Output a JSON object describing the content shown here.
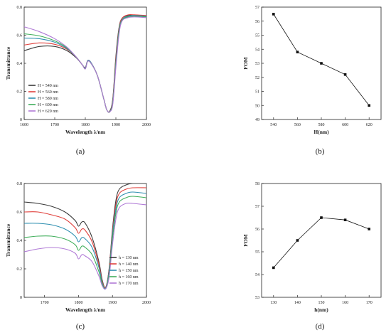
{
  "chart_data": [
    {
      "panel": "(a)",
      "type": "line",
      "xlabel": "Wavelength λ/nm",
      "ylabel": "Transmittance",
      "xlim": [
        1600,
        2000
      ],
      "ylim": [
        0,
        0.8
      ],
      "xticks": [
        "1600",
        "1700",
        "1800",
        "1900",
        "2000"
      ],
      "yticks": [
        "0",
        "0.2",
        "0.4",
        "0.6",
        "0.8"
      ],
      "legend_position": "bottom-left",
      "series": [
        {
          "name": "H = 540  nm",
          "color": "#3a3a3a",
          "x": [
            1600,
            1650,
            1700,
            1740,
            1770,
            1790,
            1800,
            1808,
            1820,
            1840,
            1860,
            1870,
            1880,
            1890,
            1900,
            1910,
            1920,
            1940,
            1960,
            2000
          ],
          "y": [
            0.49,
            0.52,
            0.52,
            0.49,
            0.44,
            0.39,
            0.37,
            0.42,
            0.4,
            0.31,
            0.15,
            0.07,
            0.06,
            0.15,
            0.45,
            0.65,
            0.72,
            0.74,
            0.74,
            0.735
          ]
        },
        {
          "name": "H = 560  nm",
          "color": "#e0403c",
          "x": [
            1600,
            1650,
            1700,
            1740,
            1770,
            1790,
            1800,
            1808,
            1820,
            1840,
            1860,
            1870,
            1880,
            1890,
            1900,
            1910,
            1920,
            1940,
            1960,
            2000
          ],
          "y": [
            0.53,
            0.545,
            0.535,
            0.5,
            0.445,
            0.39,
            0.365,
            0.42,
            0.4,
            0.31,
            0.15,
            0.07,
            0.055,
            0.14,
            0.43,
            0.64,
            0.72,
            0.745,
            0.745,
            0.74
          ]
        },
        {
          "name": "H = 580  nm",
          "color": "#2e8fb0",
          "x": [
            1600,
            1650,
            1700,
            1740,
            1770,
            1790,
            1800,
            1808,
            1820,
            1840,
            1860,
            1870,
            1880,
            1890,
            1900,
            1910,
            1920,
            1940,
            1960,
            2000
          ],
          "y": [
            0.58,
            0.575,
            0.55,
            0.505,
            0.445,
            0.39,
            0.365,
            0.42,
            0.4,
            0.31,
            0.15,
            0.07,
            0.055,
            0.13,
            0.41,
            0.63,
            0.71,
            0.735,
            0.74,
            0.735
          ]
        },
        {
          "name": "H = 600  nm",
          "color": "#3fae5a",
          "x": [
            1600,
            1650,
            1700,
            1740,
            1770,
            1790,
            1800,
            1808,
            1820,
            1840,
            1860,
            1870,
            1880,
            1890,
            1900,
            1910,
            1920,
            1940,
            1960,
            2000
          ],
          "y": [
            0.61,
            0.595,
            0.56,
            0.51,
            0.445,
            0.39,
            0.36,
            0.415,
            0.395,
            0.31,
            0.15,
            0.07,
            0.055,
            0.12,
            0.39,
            0.62,
            0.705,
            0.73,
            0.735,
            0.73
          ]
        },
        {
          "name": "H = 620  nm",
          "color": "#b07ad6",
          "x": [
            1600,
            1650,
            1700,
            1740,
            1770,
            1790,
            1800,
            1808,
            1820,
            1840,
            1860,
            1870,
            1880,
            1890,
            1900,
            1910,
            1920,
            1940,
            1960,
            2000
          ],
          "y": [
            0.66,
            0.625,
            0.575,
            0.515,
            0.445,
            0.39,
            0.36,
            0.415,
            0.395,
            0.31,
            0.15,
            0.07,
            0.055,
            0.11,
            0.37,
            0.6,
            0.7,
            0.725,
            0.73,
            0.725
          ]
        }
      ]
    },
    {
      "panel": "(b)",
      "type": "line",
      "xlabel": "H(nm)",
      "ylabel": "FOM",
      "ylim": [
        49,
        57
      ],
      "categories": [
        "540",
        "560",
        "580",
        "600",
        "620"
      ],
      "yticks": [
        "49",
        "50",
        "51",
        "52",
        "53",
        "54",
        "55",
        "56",
        "57"
      ],
      "series": [
        {
          "name": "",
          "color": "#111111",
          "values": [
            56.5,
            53.8,
            53.0,
            52.2,
            50.0
          ]
        }
      ]
    },
    {
      "panel": "(c)",
      "type": "line",
      "xlabel": "Wavelength λ/nm",
      "ylabel": "Transmittance",
      "xlim": [
        1640,
        2000
      ],
      "ylim": [
        0,
        0.8
      ],
      "xticks": [
        "1700",
        "1800",
        "1900",
        "2000"
      ],
      "yticks": [
        "0",
        "0.2",
        "0.4",
        "0.6",
        "0.8"
      ],
      "legend_position": "bottom-right",
      "series": [
        {
          "name": "h = 130  nm",
          "color": "#3a3a3a",
          "x": [
            1640,
            1680,
            1720,
            1760,
            1790,
            1800,
            1810,
            1820,
            1840,
            1860,
            1870,
            1880,
            1890,
            1900,
            1910,
            1920,
            1940,
            1960,
            2000
          ],
          "y": [
            0.67,
            0.66,
            0.64,
            0.6,
            0.54,
            0.5,
            0.53,
            0.52,
            0.42,
            0.25,
            0.12,
            0.07,
            0.2,
            0.48,
            0.68,
            0.76,
            0.79,
            0.8,
            0.8
          ]
        },
        {
          "name": "h = 140  nm",
          "color": "#e0403c",
          "x": [
            1640,
            1680,
            1720,
            1760,
            1790,
            1800,
            1810,
            1820,
            1840,
            1860,
            1870,
            1880,
            1890,
            1900,
            1910,
            1920,
            1940,
            1960,
            2000
          ],
          "y": [
            0.6,
            0.6,
            0.58,
            0.55,
            0.49,
            0.45,
            0.48,
            0.47,
            0.39,
            0.23,
            0.11,
            0.07,
            0.19,
            0.46,
            0.65,
            0.73,
            0.76,
            0.77,
            0.77
          ]
        },
        {
          "name": "h = 150  nm",
          "color": "#2e8fb0",
          "x": [
            1640,
            1680,
            1720,
            1760,
            1790,
            1800,
            1810,
            1820,
            1840,
            1860,
            1870,
            1880,
            1890,
            1900,
            1910,
            1920,
            1940,
            1960,
            2000
          ],
          "y": [
            0.52,
            0.52,
            0.51,
            0.48,
            0.43,
            0.39,
            0.42,
            0.41,
            0.35,
            0.21,
            0.1,
            0.065,
            0.18,
            0.44,
            0.62,
            0.7,
            0.73,
            0.74,
            0.73
          ]
        },
        {
          "name": "h = 160  nm",
          "color": "#3fae5a",
          "x": [
            1640,
            1680,
            1720,
            1760,
            1790,
            1800,
            1810,
            1820,
            1840,
            1860,
            1870,
            1880,
            1890,
            1900,
            1910,
            1920,
            1940,
            1960,
            2000
          ],
          "y": [
            0.42,
            0.43,
            0.43,
            0.41,
            0.37,
            0.33,
            0.36,
            0.35,
            0.3,
            0.18,
            0.09,
            0.06,
            0.16,
            0.41,
            0.59,
            0.67,
            0.7,
            0.71,
            0.7
          ]
        },
        {
          "name": "h = 170  nm",
          "color": "#b07ad6",
          "x": [
            1640,
            1680,
            1720,
            1760,
            1790,
            1800,
            1810,
            1820,
            1840,
            1860,
            1870,
            1880,
            1890,
            1900,
            1910,
            1920,
            1940,
            1960,
            2000
          ],
          "y": [
            0.32,
            0.34,
            0.35,
            0.34,
            0.31,
            0.27,
            0.3,
            0.29,
            0.25,
            0.15,
            0.08,
            0.06,
            0.14,
            0.37,
            0.55,
            0.63,
            0.66,
            0.66,
            0.65
          ]
        }
      ]
    },
    {
      "panel": "(d)",
      "type": "line",
      "xlabel": "h(nm)",
      "ylabel": "FOM",
      "ylim": [
        53,
        58
      ],
      "categories": [
        "130",
        "140",
        "150",
        "160",
        "170"
      ],
      "yticks": [
        "53",
        "54",
        "55",
        "56",
        "57",
        "58"
      ],
      "series": [
        {
          "name": "",
          "color": "#111111",
          "values": [
            54.3,
            55.5,
            56.5,
            56.4,
            56.0
          ]
        }
      ]
    }
  ]
}
